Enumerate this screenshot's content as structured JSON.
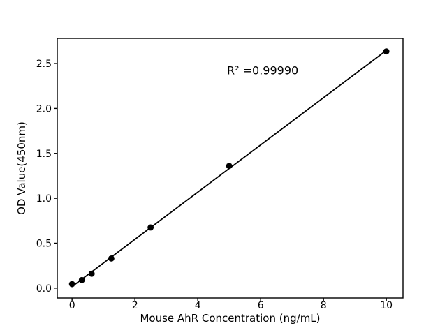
{
  "chart_data": {
    "type": "scatter",
    "title": "",
    "xlabel": "Mouse AhR Concentration (ng/mL)",
    "ylabel": "OD Value(450nm)",
    "x": [
      0,
      0.3125,
      0.625,
      1.25,
      2.5,
      5,
      10
    ],
    "y": [
      0.045,
      0.09,
      0.16,
      0.33,
      0.675,
      1.36,
      2.635
    ],
    "series": [
      {
        "name": "standard-curve",
        "marker": "filled-circle",
        "fit": "linear-regression-line"
      }
    ],
    "xlim": [
      -0.47,
      10.53
    ],
    "ylim": [
      -0.11,
      2.78
    ],
    "xticks": [
      0,
      2,
      4,
      6,
      8,
      10
    ],
    "xtick_labels": [
      "0",
      "2",
      "4",
      "6",
      "8",
      "10"
    ],
    "yticks": [
      0.0,
      0.5,
      1.0,
      1.5,
      2.0,
      2.5
    ],
    "ytick_labels": [
      "0.0",
      "0.5",
      "1.0",
      "1.5",
      "2.0",
      "2.5"
    ],
    "annotation": {
      "text": "R² =0.99990",
      "x": 4.93,
      "y": 2.42
    },
    "grid": false,
    "legend": null,
    "colors": {
      "marker": "#000000",
      "line": "#000000",
      "text": "#000000",
      "background": "#ffffff"
    }
  }
}
